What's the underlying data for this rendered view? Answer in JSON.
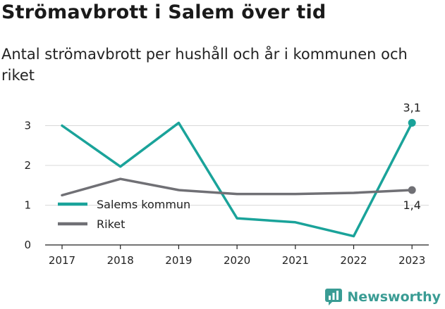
{
  "title": "Strömavbrott i Salem över tid",
  "subtitle": "Antal strömavbrott per hushåll och år i kommunen och riket",
  "brand": {
    "name": "Newsworthy",
    "icon": "newsworthy-logo-icon"
  },
  "colors": {
    "series_kommun": "#1aa39a",
    "series_riket": "#707075",
    "grid": "#d9d9d9",
    "axis": "#222222"
  },
  "chart_data": {
    "type": "line",
    "x": [
      "2017",
      "2018",
      "2019",
      "2020",
      "2021",
      "2022",
      "2023"
    ],
    "ylim": [
      0,
      3.3
    ],
    "yticks": [
      "0",
      "1",
      "2",
      "3"
    ],
    "grid": true,
    "legend_position": "center-left",
    "series": [
      {
        "name": "Salems kommun",
        "color": "#1aa39a",
        "values": [
          3.0,
          1.97,
          3.07,
          0.67,
          0.57,
          0.22,
          3.07
        ],
        "end_label": "3,1"
      },
      {
        "name": "Riket",
        "color": "#707075",
        "values": [
          1.25,
          1.66,
          1.38,
          1.28,
          1.28,
          1.31,
          1.38
        ],
        "end_label": "1,4"
      }
    ]
  }
}
